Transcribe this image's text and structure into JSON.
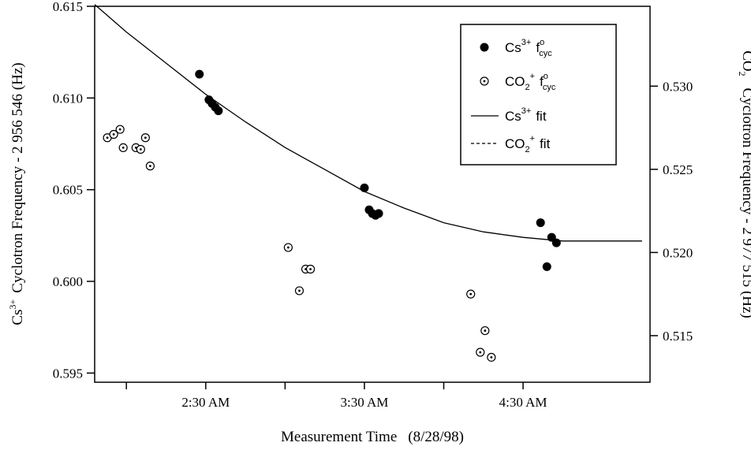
{
  "chart_data": {
    "type": "scatter",
    "title": "",
    "xlabel": "Measurement Time",
    "xlabel_note": "(8/28/98)",
    "x_unit": "hours since midnight 8/28/98",
    "xlim": [
      1.8,
      5.3
    ],
    "x_ticks": [
      {
        "value": 2.0,
        "label": ""
      },
      {
        "value": 2.5,
        "label": "2:30 AM"
      },
      {
        "value": 3.0,
        "label": ""
      },
      {
        "value": 3.5,
        "label": "3:30 AM"
      },
      {
        "value": 4.0,
        "label": ""
      },
      {
        "value": 4.5,
        "label": "4:30 AM"
      }
    ],
    "y_left": {
      "label_prefix": "Cs",
      "label_sup": "3+",
      "label_rest": "Cyclotron Frequency - 2 956 546 (Hz)",
      "lim": [
        0.5945,
        0.615
      ],
      "ticks": [
        {
          "value": 0.595,
          "label": "0.595"
        },
        {
          "value": 0.6,
          "label": "0.600"
        },
        {
          "value": 0.605,
          "label": "0.605"
        },
        {
          "value": 0.61,
          "label": "0.610"
        },
        {
          "value": 0.615,
          "label": "0.615"
        }
      ]
    },
    "y_right": {
      "label_prefix": "CO",
      "label_sub": "2",
      "label_sup": "+",
      "label_rest": "Cyclotron Frequency - 2 977 515 (Hz)",
      "lim": [
        0.5122,
        0.5348
      ],
      "ticks": [
        {
          "value": 0.515,
          "label": "0.515"
        },
        {
          "value": 0.52,
          "label": "0.520"
        },
        {
          "value": 0.525,
          "label": "0.525"
        },
        {
          "value": 0.53,
          "label": "0.530"
        }
      ]
    },
    "legend": {
      "placement": "top-right",
      "entries": [
        {
          "marker": "filled-circle",
          "base": "Cs",
          "sup": "3+",
          "symbol": "f",
          "symbol_sup": "o",
          "symbol_sub": "cyc"
        },
        {
          "marker": "open-circle",
          "base": "CO",
          "sub": "2",
          "sup": "+",
          "symbol": "f",
          "symbol_sup": "o",
          "symbol_sub": "cyc"
        },
        {
          "marker": "solid-line",
          "base": "Cs",
          "sup": "3+",
          "text": "fit"
        },
        {
          "marker": "dashed-line",
          "base": "CO",
          "sub": "2",
          "sup": "+",
          "text": "fit"
        }
      ]
    },
    "series": [
      {
        "name": "Cs3+ f°cyc",
        "marker": "filled-circle",
        "axis": "left",
        "points": [
          {
            "x": 2.46,
            "y": 0.6113
          },
          {
            "x": 2.52,
            "y": 0.6099
          },
          {
            "x": 2.54,
            "y": 0.6097
          },
          {
            "x": 2.56,
            "y": 0.6095
          },
          {
            "x": 2.58,
            "y": 0.6093
          },
          {
            "x": 3.5,
            "y": 0.6051
          },
          {
            "x": 3.53,
            "y": 0.6039
          },
          {
            "x": 3.55,
            "y": 0.6037
          },
          {
            "x": 3.57,
            "y": 0.6036
          },
          {
            "x": 3.59,
            "y": 0.6037
          },
          {
            "x": 4.61,
            "y": 0.6032
          },
          {
            "x": 4.65,
            "y": 0.6008
          },
          {
            "x": 4.68,
            "y": 0.6024
          },
          {
            "x": 4.71,
            "y": 0.6021
          }
        ]
      },
      {
        "name": "CO2+ f°cyc",
        "marker": "open-circle",
        "axis": "right",
        "points": [
          {
            "x": 1.88,
            "y": 0.5269
          },
          {
            "x": 1.92,
            "y": 0.5271
          },
          {
            "x": 1.96,
            "y": 0.5274
          },
          {
            "x": 1.98,
            "y": 0.5263
          },
          {
            "x": 2.06,
            "y": 0.5263
          },
          {
            "x": 2.09,
            "y": 0.5262
          },
          {
            "x": 2.12,
            "y": 0.5269
          },
          {
            "x": 2.15,
            "y": 0.5252
          },
          {
            "x": 3.02,
            "y": 0.5203
          },
          {
            "x": 3.09,
            "y": 0.5177
          },
          {
            "x": 3.13,
            "y": 0.519
          },
          {
            "x": 3.16,
            "y": 0.519
          },
          {
            "x": 4.17,
            "y": 0.5175
          },
          {
            "x": 4.23,
            "y": 0.514
          },
          {
            "x": 4.26,
            "y": 0.5153
          },
          {
            "x": 4.3,
            "y": 0.5137
          }
        ]
      },
      {
        "name": "Cs3+ fit",
        "marker": "solid-line",
        "axis": "left",
        "x": [
          1.8,
          2.0,
          2.25,
          2.5,
          2.75,
          3.0,
          3.25,
          3.5,
          3.75,
          4.0,
          4.25,
          4.5,
          4.75,
          5.0,
          5.25
        ],
        "y": [
          0.6151,
          0.6136,
          0.6119,
          0.6102,
          0.6087,
          0.6073,
          0.6061,
          0.6049,
          0.604,
          0.6032,
          0.6027,
          0.6024,
          0.6022,
          0.6022,
          0.6022
        ]
      }
    ]
  }
}
